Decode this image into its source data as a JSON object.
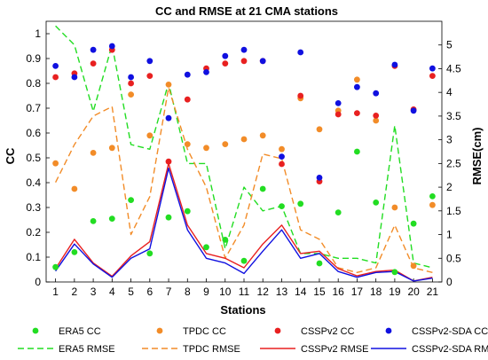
{
  "chart_data": {
    "type": "line",
    "title": "CC and RMSE at 21 CMA stations",
    "xlabel": "Stations",
    "ylabel_left": "CC",
    "ylabel_right": "RMSE(cm)",
    "x": [
      1,
      2,
      3,
      4,
      5,
      6,
      7,
      8,
      9,
      10,
      11,
      12,
      13,
      14,
      15,
      16,
      17,
      18,
      19,
      20,
      21
    ],
    "xlim": [
      0.5,
      21.5
    ],
    "ylim_left": [
      0,
      1.05
    ],
    "ylim_right": [
      0,
      5.5
    ],
    "yticks_left": [
      0,
      0.1,
      0.2,
      0.3,
      0.4,
      0.5,
      0.6,
      0.7,
      0.8,
      0.9,
      1
    ],
    "yticks_right": [
      0,
      0.5,
      1,
      1.5,
      2,
      2.5,
      3,
      3.5,
      4,
      4.5,
      5
    ],
    "cc_series": [
      {
        "name": "ERA5 CC",
        "color": "#22dd22",
        "values": [
          0.06,
          0.12,
          0.245,
          0.255,
          0.33,
          0.115,
          0.26,
          0.285,
          0.14,
          0.17,
          0.085,
          0.375,
          0.305,
          0.315,
          0.075,
          0.28,
          0.525,
          0.32,
          0.04,
          0.235,
          0.345
        ]
      },
      {
        "name": "TPDC CC",
        "color": "#f28c28",
        "values": [
          0.478,
          0.375,
          0.52,
          0.54,
          0.755,
          0.59,
          0.795,
          0.555,
          0.54,
          0.555,
          0.575,
          0.59,
          0.535,
          0.74,
          0.615,
          0.69,
          0.815,
          0.65,
          0.3,
          0.065,
          0.31
        ]
      },
      {
        "name": "CSSPv2 CC",
        "color": "#e82020",
        "values": [
          0.825,
          0.84,
          0.88,
          0.935,
          0.8,
          0.83,
          0.485,
          0.735,
          0.86,
          0.88,
          0.89,
          0.89,
          0.475,
          0.75,
          0.405,
          0.675,
          0.68,
          0.67,
          0.87,
          0.695,
          0.83
        ]
      },
      {
        "name": "CSSPv2-SDA CC",
        "color": "#1010e0",
        "values": [
          0.87,
          0.825,
          0.935,
          0.95,
          0.825,
          0.89,
          0.66,
          0.835,
          0.845,
          0.91,
          0.935,
          0.89,
          0.505,
          0.925,
          0.42,
          0.72,
          0.785,
          0.76,
          0.875,
          0.69,
          0.86
        ]
      }
    ],
    "rmse_series": [
      {
        "name": "ERA5 RMSE",
        "color": "#22dd22",
        "dash": "7,4",
        "values": [
          5.4,
          5.0,
          3.6,
          5.0,
          2.9,
          2.8,
          4.2,
          2.5,
          2.5,
          0.7,
          2.0,
          1.5,
          1.6,
          0.6,
          0.6,
          0.5,
          0.5,
          0.4,
          3.3,
          0.4,
          0.3
        ]
      },
      {
        "name": "TPDC RMSE",
        "color": "#f28c28",
        "dash": "7,4",
        "values": [
          2.1,
          2.9,
          3.5,
          3.7,
          1.0,
          1.8,
          4.1,
          2.8,
          2.0,
          0.5,
          1.2,
          2.7,
          2.6,
          1.1,
          0.9,
          0.3,
          0.2,
          0.3,
          1.2,
          0.3,
          0.2
        ]
      },
      {
        "name": "CSSPv2 RMSE",
        "color": "#e82020",
        "dash": "",
        "values": [
          0.28,
          0.9,
          0.4,
          0.12,
          0.55,
          0.85,
          2.5,
          1.2,
          0.6,
          0.5,
          0.3,
          0.8,
          1.2,
          0.6,
          0.65,
          0.28,
          0.13,
          0.22,
          0.25,
          0.02,
          0.1
        ]
      },
      {
        "name": "CSSPv2-SDA RMSE",
        "color": "#1010e0",
        "dash": "",
        "values": [
          0.23,
          0.8,
          0.38,
          0.1,
          0.5,
          0.7,
          2.4,
          1.1,
          0.5,
          0.4,
          0.18,
          0.65,
          1.1,
          0.5,
          0.6,
          0.22,
          0.1,
          0.2,
          0.22,
          0.02,
          0.08
        ]
      }
    ],
    "legend": {
      "placement": "bottom",
      "rows": [
        [
          {
            "label": "ERA5 CC",
            "kind": "marker",
            "color": "#22dd22"
          },
          {
            "label": "TPDC CC",
            "kind": "marker",
            "color": "#f28c28"
          },
          {
            "label": "CSSPv2 CC",
            "kind": "marker",
            "color": "#e82020"
          },
          {
            "label": "CSSPv2-SDA CC",
            "kind": "marker",
            "color": "#1010e0"
          }
        ],
        [
          {
            "label": "ERA5 RMSE",
            "kind": "dashed",
            "color": "#22dd22"
          },
          {
            "label": "TPDC RMSE",
            "kind": "dashed",
            "color": "#f28c28"
          },
          {
            "label": "CSSPv2 RMSE",
            "kind": "solid",
            "color": "#e82020"
          },
          {
            "label": "CSSPv2-SDA RMSE",
            "kind": "solid",
            "color": "#1010e0"
          }
        ]
      ]
    }
  }
}
